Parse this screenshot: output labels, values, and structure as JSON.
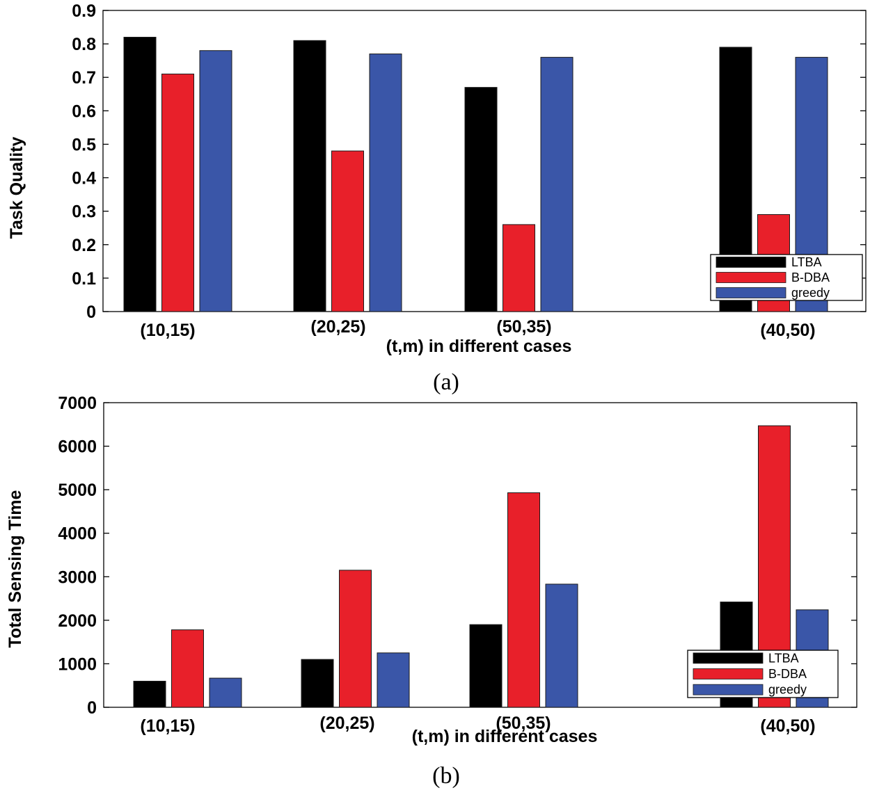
{
  "chart_data": [
    {
      "type": "bar",
      "caption": "(a)",
      "title": "",
      "xlabel": "(t,m) in different cases",
      "ylabel": "Task Quality",
      "ylim": [
        0,
        0.9
      ],
      "yticks": [
        "0",
        "0.1",
        "0.2",
        "0.3",
        "0.4",
        "0.5",
        "0.6",
        "0.7",
        "0.8",
        "0.9"
      ],
      "categories": [
        "(10,15)",
        "(20,25)",
        "(50,35)",
        "(40,50)"
      ],
      "series": [
        {
          "name": "LTBA",
          "color": "#000000",
          "values": [
            0.82,
            0.81,
            0.67,
            0.79
          ]
        },
        {
          "name": "B-DBA",
          "color": "#e8202a",
          "values": [
            0.71,
            0.48,
            0.26,
            0.29
          ]
        },
        {
          "name": "greedy",
          "color": "#3a56a8",
          "values": [
            0.78,
            0.77,
            0.76,
            0.76
          ]
        }
      ],
      "legend": "bottom-right"
    },
    {
      "type": "bar",
      "caption": "(b)",
      "title": "",
      "xlabel": "(t,m) in different cases",
      "ylabel": "Total Sensing Time",
      "ylim": [
        0,
        7000
      ],
      "yticks": [
        "0",
        "1000",
        "2000",
        "3000",
        "4000",
        "5000",
        "6000",
        "7000"
      ],
      "categories": [
        "(10,15)",
        "(20,25)",
        "(50,35)",
        "(40,50)"
      ],
      "series": [
        {
          "name": "LTBA",
          "color": "#000000",
          "values": [
            600,
            1100,
            1900,
            2420
          ]
        },
        {
          "name": "B-DBA",
          "color": "#e8202a",
          "values": [
            1780,
            3150,
            4930,
            6470
          ]
        },
        {
          "name": "greedy",
          "color": "#3a56a8",
          "values": [
            670,
            1250,
            2830,
            2240
          ]
        }
      ],
      "legend": "bottom-right"
    }
  ]
}
